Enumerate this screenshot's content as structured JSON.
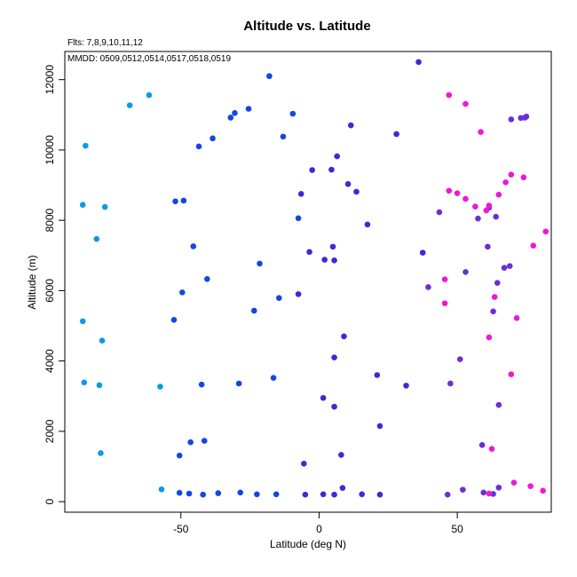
{
  "chart_data": {
    "type": "scatter",
    "title": "Altitude vs. Latitude",
    "subtitle": "Flts: 7,8,9,10,11,12",
    "annotation": "MMDD: 0509,0512,0514,0517,0518,0519",
    "xlabel": "Latitude (deg N)",
    "ylabel": "Altitude (m)",
    "xlim": [
      -92,
      84
    ],
    "ylim": [
      -300,
      12800
    ],
    "xticks": [
      -50,
      0,
      50
    ],
    "yticks": [
      0,
      2000,
      4000,
      6000,
      8000,
      10000,
      12000
    ],
    "grid": false,
    "legend": "none",
    "points": [
      {
        "x": -84.5,
        "y": 10120,
        "c": "#0a9be6"
      },
      {
        "x": -85.5,
        "y": 8440,
        "c": "#0a9be6"
      },
      {
        "x": -77.5,
        "y": 8380,
        "c": "#0a9be6"
      },
      {
        "x": -80.5,
        "y": 7470,
        "c": "#0a9be6"
      },
      {
        "x": -85.5,
        "y": 5130,
        "c": "#0a9be6"
      },
      {
        "x": -78.5,
        "y": 4580,
        "c": "#0a9be6"
      },
      {
        "x": -85.0,
        "y": 3390,
        "c": "#0a9be6"
      },
      {
        "x": -79.5,
        "y": 3310,
        "c": "#0a9be6"
      },
      {
        "x": -57.5,
        "y": 3270,
        "c": "#0a9be6"
      },
      {
        "x": -79.0,
        "y": 1380,
        "c": "#0a9be6"
      },
      {
        "x": -57.0,
        "y": 350,
        "c": "#0a9be6"
      },
      {
        "x": -68.5,
        "y": 11270,
        "c": "#0a9be6"
      },
      {
        "x": -61.5,
        "y": 11560,
        "c": "#0a9be6"
      },
      {
        "x": -18.0,
        "y": 12100,
        "c": "#1446e6"
      },
      {
        "x": -32.0,
        "y": 10920,
        "c": "#1446e6"
      },
      {
        "x": -30.5,
        "y": 11050,
        "c": "#1446e6"
      },
      {
        "x": -25.5,
        "y": 11170,
        "c": "#1446e6"
      },
      {
        "x": -9.5,
        "y": 11030,
        "c": "#1446e6"
      },
      {
        "x": -38.5,
        "y": 10330,
        "c": "#1446e6"
      },
      {
        "x": -43.5,
        "y": 10100,
        "c": "#1446e6"
      },
      {
        "x": -13.0,
        "y": 10380,
        "c": "#1446e6"
      },
      {
        "x": -52.0,
        "y": 8540,
        "c": "#1446e6"
      },
      {
        "x": -49.0,
        "y": 8560,
        "c": "#1446e6"
      },
      {
        "x": -7.5,
        "y": 8060,
        "c": "#1446e6"
      },
      {
        "x": -45.5,
        "y": 7260,
        "c": "#1446e6"
      },
      {
        "x": -21.5,
        "y": 6770,
        "c": "#1446e6"
      },
      {
        "x": -40.5,
        "y": 6330,
        "c": "#1446e6"
      },
      {
        "x": -49.5,
        "y": 5950,
        "c": "#1446e6"
      },
      {
        "x": -14.5,
        "y": 5790,
        "c": "#1446e6"
      },
      {
        "x": -23.5,
        "y": 5430,
        "c": "#1446e6"
      },
      {
        "x": -52.5,
        "y": 5170,
        "c": "#1446e6"
      },
      {
        "x": -16.5,
        "y": 3520,
        "c": "#1446e6"
      },
      {
        "x": -29.0,
        "y": 3360,
        "c": "#1446e6"
      },
      {
        "x": -42.5,
        "y": 3330,
        "c": "#1446e6"
      },
      {
        "x": -41.5,
        "y": 1730,
        "c": "#1446e6"
      },
      {
        "x": -46.5,
        "y": 1690,
        "c": "#1446e6"
      },
      {
        "x": -50.5,
        "y": 1310,
        "c": "#1446e6"
      },
      {
        "x": -50.5,
        "y": 250,
        "c": "#1446e6"
      },
      {
        "x": -47.0,
        "y": 230,
        "c": "#1446e6"
      },
      {
        "x": -42.0,
        "y": 200,
        "c": "#1446e6"
      },
      {
        "x": -36.5,
        "y": 240,
        "c": "#1446e6"
      },
      {
        "x": -28.5,
        "y": 260,
        "c": "#1446e6"
      },
      {
        "x": -22.5,
        "y": 210,
        "c": "#1446e6"
      },
      {
        "x": -15.5,
        "y": 210,
        "c": "#1446e6"
      },
      {
        "x": 36.0,
        "y": 12500,
        "c": "#3a2ad8"
      },
      {
        "x": 11.5,
        "y": 10700,
        "c": "#3a2ad8"
      },
      {
        "x": 28.0,
        "y": 10450,
        "c": "#3a2ad8"
      },
      {
        "x": 6.5,
        "y": 9820,
        "c": "#3a2ad8"
      },
      {
        "x": -2.5,
        "y": 9430,
        "c": "#3a2ad8"
      },
      {
        "x": 4.5,
        "y": 9440,
        "c": "#3a2ad8"
      },
      {
        "x": 10.5,
        "y": 9030,
        "c": "#3a2ad8"
      },
      {
        "x": -6.5,
        "y": 8750,
        "c": "#3a2ad8"
      },
      {
        "x": 13.5,
        "y": 8810,
        "c": "#3a2ad8"
      },
      {
        "x": 17.5,
        "y": 7880,
        "c": "#3a2ad8"
      },
      {
        "x": 5.0,
        "y": 7250,
        "c": "#3a2ad8"
      },
      {
        "x": -3.5,
        "y": 7100,
        "c": "#3a2ad8"
      },
      {
        "x": 37.5,
        "y": 7080,
        "c": "#3a2ad8"
      },
      {
        "x": 2.0,
        "y": 6880,
        "c": "#3a2ad8"
      },
      {
        "x": 5.5,
        "y": 6860,
        "c": "#3a2ad8"
      },
      {
        "x": -7.5,
        "y": 5900,
        "c": "#3a2ad8"
      },
      {
        "x": 9.0,
        "y": 4700,
        "c": "#3a2ad8"
      },
      {
        "x": 5.5,
        "y": 4100,
        "c": "#3a2ad8"
      },
      {
        "x": 21.0,
        "y": 3600,
        "c": "#3a2ad8"
      },
      {
        "x": 31.5,
        "y": 3300,
        "c": "#3a2ad8"
      },
      {
        "x": 1.5,
        "y": 2950,
        "c": "#3a2ad8"
      },
      {
        "x": 5.5,
        "y": 2700,
        "c": "#3a2ad8"
      },
      {
        "x": 22.0,
        "y": 2150,
        "c": "#3a2ad8"
      },
      {
        "x": 8.0,
        "y": 1330,
        "c": "#3a2ad8"
      },
      {
        "x": -5.5,
        "y": 1080,
        "c": "#3a2ad8"
      },
      {
        "x": 8.5,
        "y": 390,
        "c": "#3a2ad8"
      },
      {
        "x": -5.0,
        "y": 200,
        "c": "#3a2ad8"
      },
      {
        "x": 1.5,
        "y": 210,
        "c": "#3a2ad8"
      },
      {
        "x": 5.5,
        "y": 200,
        "c": "#3a2ad8"
      },
      {
        "x": 15.5,
        "y": 210,
        "c": "#3a2ad8"
      },
      {
        "x": 22.0,
        "y": 200,
        "c": "#3a2ad8"
      },
      {
        "x": 69.5,
        "y": 10870,
        "c": "#6a2fd6"
      },
      {
        "x": 73.0,
        "y": 10910,
        "c": "#6a2fd6"
      },
      {
        "x": 75.0,
        "y": 10950,
        "c": "#6a2fd6"
      },
      {
        "x": 74.5,
        "y": 10920,
        "c": "#6a2fd6"
      },
      {
        "x": 43.5,
        "y": 8230,
        "c": "#6a2fd6"
      },
      {
        "x": 57.5,
        "y": 8050,
        "c": "#6a2fd6"
      },
      {
        "x": 61.5,
        "y": 8360,
        "c": "#6a2fd6"
      },
      {
        "x": 64.0,
        "y": 8100,
        "c": "#6a2fd6"
      },
      {
        "x": 61.0,
        "y": 7250,
        "c": "#6a2fd6"
      },
      {
        "x": 67.0,
        "y": 6650,
        "c": "#6a2fd6"
      },
      {
        "x": 69.0,
        "y": 6700,
        "c": "#6a2fd6"
      },
      {
        "x": 53.0,
        "y": 6530,
        "c": "#6a2fd6"
      },
      {
        "x": 64.5,
        "y": 6220,
        "c": "#6a2fd6"
      },
      {
        "x": 39.5,
        "y": 6100,
        "c": "#6a2fd6"
      },
      {
        "x": 63.0,
        "y": 5410,
        "c": "#6a2fd6"
      },
      {
        "x": 51.0,
        "y": 4050,
        "c": "#6a2fd6"
      },
      {
        "x": 47.5,
        "y": 3360,
        "c": "#6a2fd6"
      },
      {
        "x": 65.0,
        "y": 2750,
        "c": "#6a2fd6"
      },
      {
        "x": 59.0,
        "y": 1610,
        "c": "#6a2fd6"
      },
      {
        "x": 52.0,
        "y": 340,
        "c": "#6a2fd6"
      },
      {
        "x": 46.5,
        "y": 200,
        "c": "#6a2fd6"
      },
      {
        "x": 59.5,
        "y": 260,
        "c": "#6a2fd6"
      },
      {
        "x": 63.0,
        "y": 220,
        "c": "#6a2fd6"
      },
      {
        "x": 65.0,
        "y": 400,
        "c": "#6a2fd6"
      },
      {
        "x": 47.0,
        "y": 11560,
        "c": "#ee18d4"
      },
      {
        "x": 53.0,
        "y": 11310,
        "c": "#ee18d4"
      },
      {
        "x": 58.5,
        "y": 10510,
        "c": "#ee18d4"
      },
      {
        "x": 69.5,
        "y": 9300,
        "c": "#ee18d4"
      },
      {
        "x": 74.0,
        "y": 9220,
        "c": "#ee18d4"
      },
      {
        "x": 67.5,
        "y": 9080,
        "c": "#ee18d4"
      },
      {
        "x": 47.0,
        "y": 8840,
        "c": "#ee18d4"
      },
      {
        "x": 50.0,
        "y": 8770,
        "c": "#ee18d4"
      },
      {
        "x": 53.0,
        "y": 8610,
        "c": "#ee18d4"
      },
      {
        "x": 65.0,
        "y": 8730,
        "c": "#ee18d4"
      },
      {
        "x": 56.5,
        "y": 8390,
        "c": "#ee18d4"
      },
      {
        "x": 60.5,
        "y": 8280,
        "c": "#ee18d4"
      },
      {
        "x": 61.5,
        "y": 8420,
        "c": "#ee18d4"
      },
      {
        "x": 82.0,
        "y": 7680,
        "c": "#ee18d4"
      },
      {
        "x": 77.5,
        "y": 7280,
        "c": "#ee18d4"
      },
      {
        "x": 45.5,
        "y": 6320,
        "c": "#ee18d4"
      },
      {
        "x": 63.5,
        "y": 5820,
        "c": "#ee18d4"
      },
      {
        "x": 45.5,
        "y": 5640,
        "c": "#ee18d4"
      },
      {
        "x": 71.5,
        "y": 5220,
        "c": "#ee18d4"
      },
      {
        "x": 61.5,
        "y": 4670,
        "c": "#ee18d4"
      },
      {
        "x": 69.5,
        "y": 3620,
        "c": "#ee18d4"
      },
      {
        "x": 62.5,
        "y": 1500,
        "c": "#ee18d4"
      },
      {
        "x": 70.5,
        "y": 540,
        "c": "#ee18d4"
      },
      {
        "x": 76.5,
        "y": 440,
        "c": "#ee18d4"
      },
      {
        "x": 81.0,
        "y": 310,
        "c": "#ee18d4"
      },
      {
        "x": 61.5,
        "y": 230,
        "c": "#ee18d4"
      }
    ]
  }
}
